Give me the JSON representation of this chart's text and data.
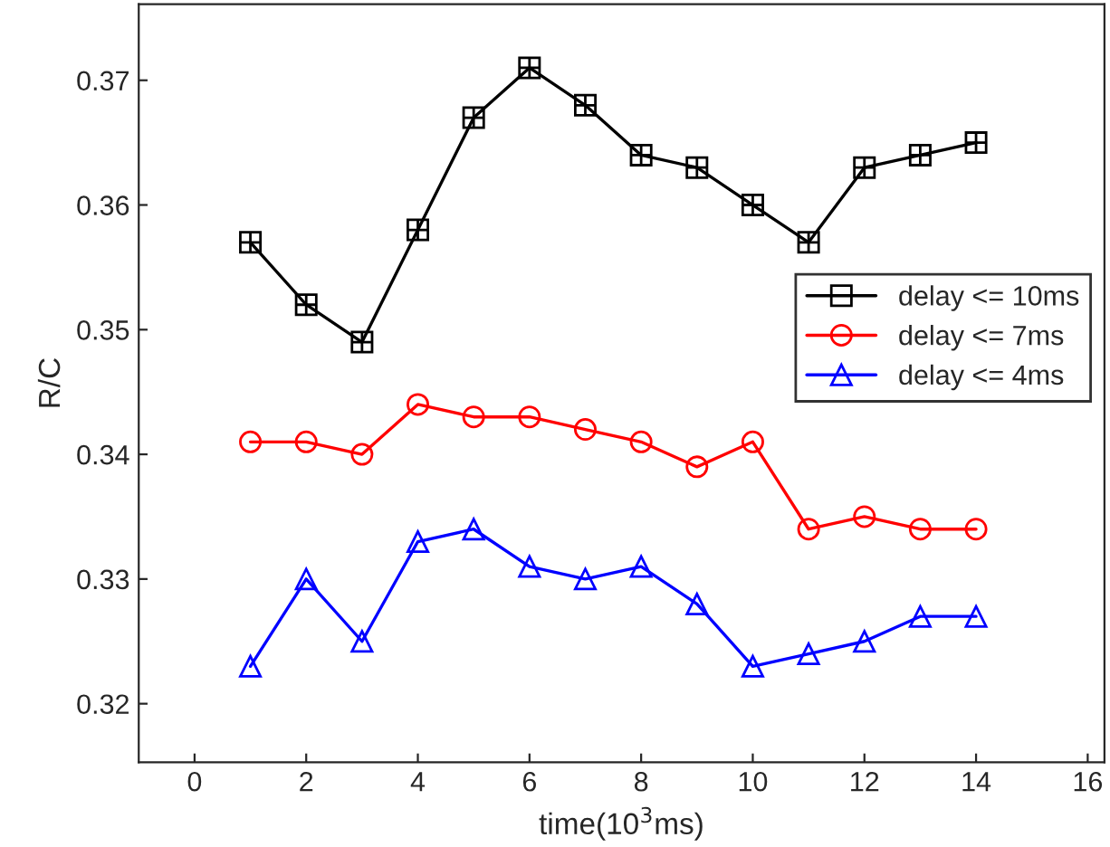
{
  "chart_data": {
    "type": "line",
    "xlabel": "time(10$^{3}$ms)",
    "ylabel": "R/C",
    "x": [
      1,
      2,
      3,
      4,
      5,
      6,
      7,
      8,
      9,
      10,
      11,
      12,
      13,
      14
    ],
    "series": [
      {
        "name": "delay <= 10ms",
        "color": "#000000",
        "marker": "square",
        "values": [
          0.357,
          0.352,
          0.349,
          0.358,
          0.367,
          0.371,
          0.368,
          0.364,
          0.363,
          0.36,
          0.357,
          0.363,
          0.364,
          0.365
        ]
      },
      {
        "name": "delay <= 7ms",
        "color": "#ff0000",
        "marker": "circle",
        "values": [
          0.341,
          0.341,
          0.34,
          0.344,
          0.343,
          0.343,
          0.342,
          0.341,
          0.339,
          0.341,
          0.334,
          0.335,
          0.334,
          0.334
        ]
      },
      {
        "name": "delay <= 4ms",
        "color": "#0000ff",
        "marker": "triangle",
        "values": [
          0.323,
          0.33,
          0.325,
          0.333,
          0.334,
          0.331,
          0.33,
          0.331,
          0.328,
          0.323,
          0.324,
          0.325,
          0.327,
          0.327
        ]
      }
    ],
    "xlim": [
      -1,
      16.3
    ],
    "xticks": [
      0,
      2,
      4,
      6,
      8,
      10,
      12,
      14,
      16
    ],
    "ylim": [
      0.3153,
      0.3761
    ],
    "yticks": [
      0.32,
      0.33,
      0.34,
      0.35,
      0.36,
      0.37
    ],
    "grid": false,
    "legend": "center right",
    "line_style": "solid"
  }
}
